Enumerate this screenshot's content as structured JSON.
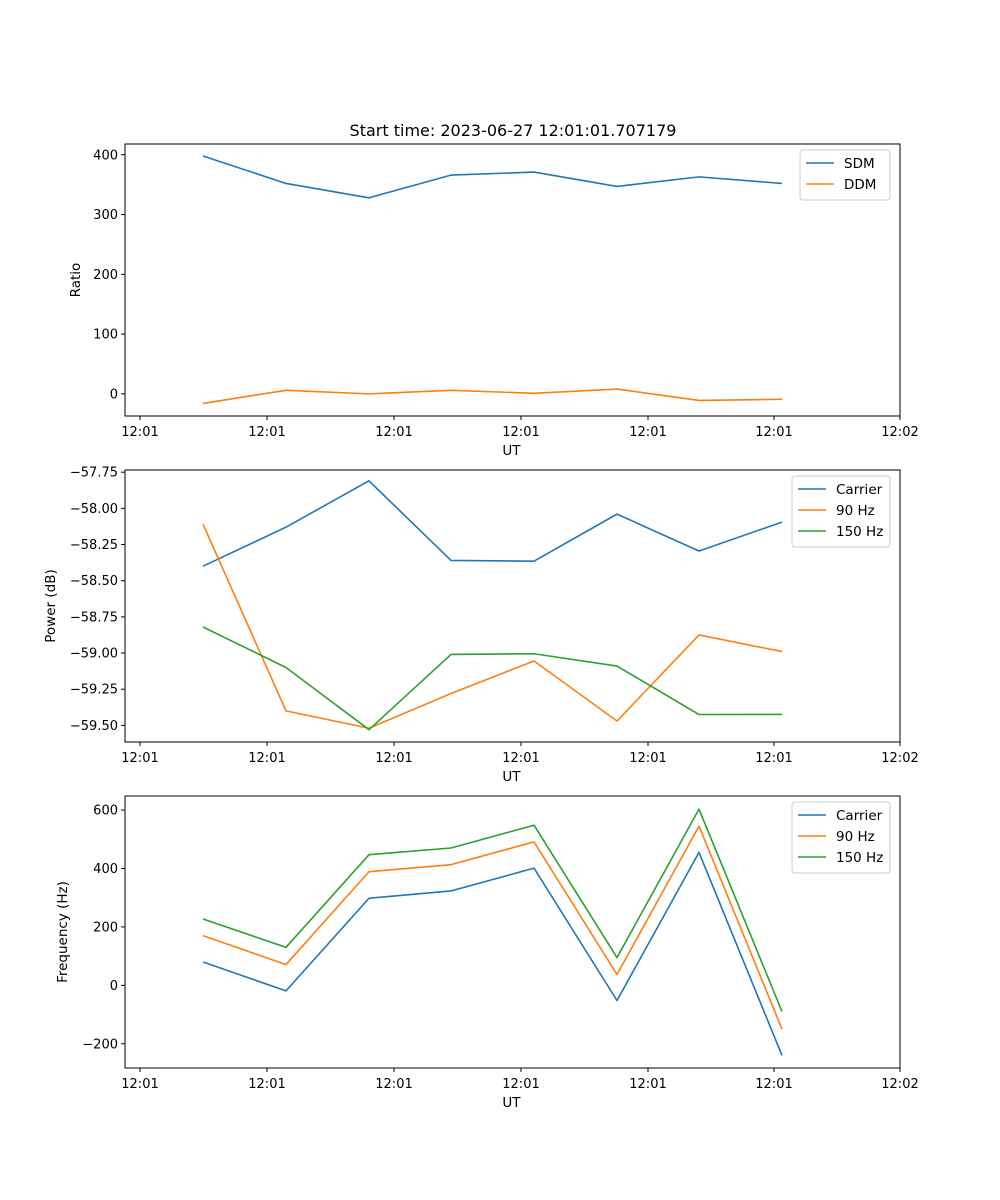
{
  "title": "Start time: 2023-06-27 12:01:01.707179",
  "chart_data": [
    {
      "type": "line",
      "xlabel": "UT",
      "ylabel": "Ratio",
      "xticks": [
        "12:01",
        "12:01",
        "12:01",
        "12:01",
        "12:01",
        "12:01",
        "12:02"
      ],
      "yticks": [
        "0",
        "100",
        "200",
        "300",
        "400"
      ],
      "ylim": [
        -37,
        418
      ],
      "legend_position": "top-right",
      "series": [
        {
          "name": "SDM",
          "color": "#1f77b4",
          "values": [
            398,
            352,
            328,
            366,
            371,
            347,
            363,
            352
          ]
        },
        {
          "name": "DDM",
          "color": "#ff7f0e",
          "values": [
            -16,
            6,
            0,
            6,
            1,
            8,
            -11,
            -9
          ]
        }
      ]
    },
    {
      "type": "line",
      "xlabel": "UT",
      "ylabel": "Power (dB)",
      "xticks": [
        "12:01",
        "12:01",
        "12:01",
        "12:01",
        "12:01",
        "12:01",
        "12:02"
      ],
      "yticks": [
        "−57.75",
        "−58.00",
        "−58.25",
        "−58.50",
        "−58.75",
        "−59.00",
        "−59.25",
        "−59.50"
      ],
      "ylim": [
        -59.615,
        -57.735
      ],
      "legend_position": "top-right",
      "series": [
        {
          "name": "Carrier",
          "color": "#1f77b4",
          "values": [
            -58.4,
            -58.13,
            -57.81,
            -58.36,
            -58.365,
            -58.04,
            -58.295,
            -58.095
          ]
        },
        {
          "name": "90 Hz",
          "color": "#ff7f0e",
          "values": [
            -58.11,
            -59.4,
            -59.52,
            -59.28,
            -59.055,
            -59.47,
            -58.875,
            -58.99
          ]
        },
        {
          "name": "150 Hz",
          "color": "#2ca02c",
          "values": [
            -58.82,
            -59.1,
            -59.53,
            -59.01,
            -59.005,
            -59.09,
            -59.425,
            -59.424
          ]
        }
      ]
    },
    {
      "type": "line",
      "xlabel": "UT",
      "ylabel": "Frequency (Hz)",
      "xticks": [
        "12:01",
        "12:01",
        "12:01",
        "12:01",
        "12:01",
        "12:01",
        "12:02"
      ],
      "yticks": [
        "600",
        "400",
        "200",
        "0",
        "−200"
      ],
      "ylim": [
        -283,
        648
      ],
      "legend_position": "top-right",
      "series": [
        {
          "name": "Carrier",
          "color": "#1f77b4",
          "values": [
            80,
            -19,
            298,
            323,
            401,
            -52,
            455,
            -240
          ]
        },
        {
          "name": "90 Hz",
          "color": "#ff7f0e",
          "values": [
            170,
            71,
            389,
            413,
            491,
            37,
            545,
            -150
          ]
        },
        {
          "name": "150 Hz",
          "color": "#2ca02c",
          "values": [
            227,
            130,
            447,
            470,
            548,
            95,
            603,
            -90
          ]
        }
      ]
    }
  ]
}
